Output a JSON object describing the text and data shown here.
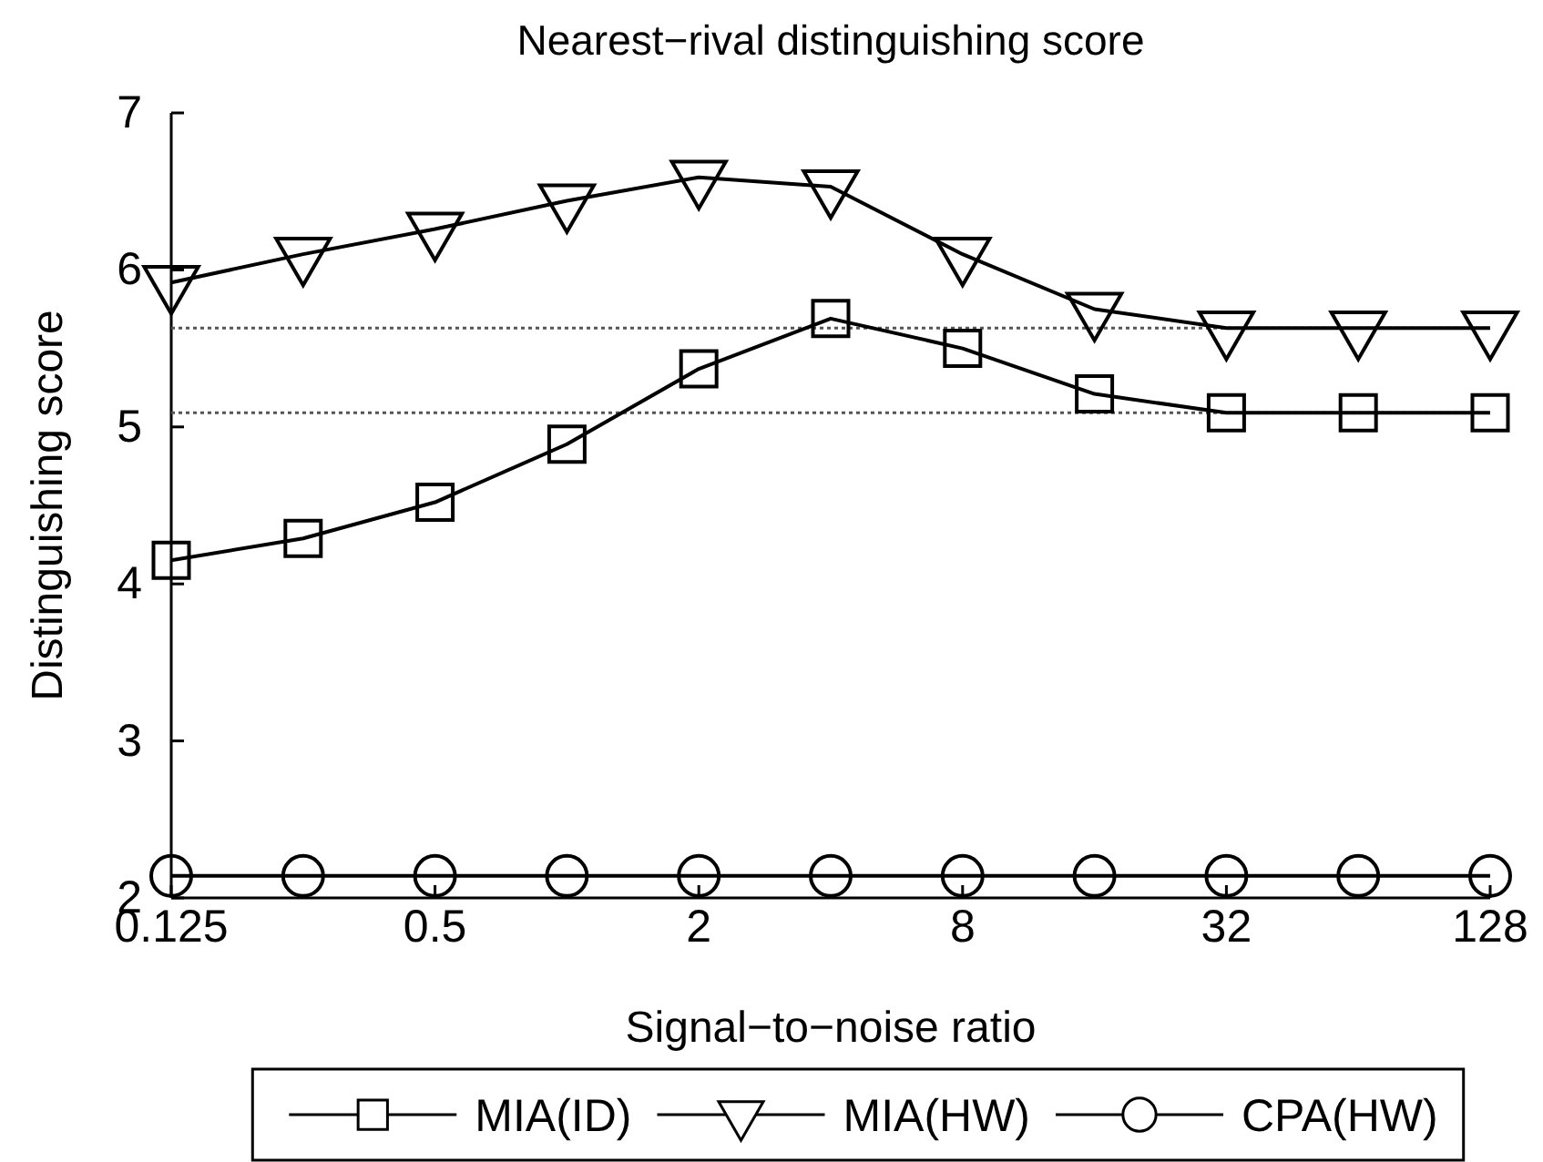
{
  "chart_data": {
    "type": "line",
    "title": "Nearest−rival distinguishing score",
    "xlabel": "Signal−to−noise ratio",
    "ylabel": "Distinguishing score",
    "x": [
      0.125,
      0.25,
      0.5,
      1,
      2,
      4,
      8,
      16,
      32,
      64,
      128
    ],
    "log": "x",
    "xlim": [
      0.125,
      128
    ],
    "xticks": [
      0.125,
      0.5,
      2,
      8,
      32,
      128
    ],
    "ylim": [
      2,
      7
    ],
    "yticks": [
      2,
      3,
      4,
      5,
      6,
      7
    ],
    "grid": false,
    "legend": "bottom",
    "line_style": "solid",
    "series": [
      {
        "name": "MIA(ID)",
        "color": "#000000",
        "marker": "square",
        "values": [
          4.15,
          4.29,
          4.52,
          4.89,
          5.37,
          5.69,
          5.5,
          5.21,
          5.09,
          5.09,
          5.09
        ]
      },
      {
        "name": "MIA(HW)",
        "color": "#000000",
        "marker": "triangle",
        "values": [
          5.92,
          6.1,
          6.26,
          6.44,
          6.59,
          6.53,
          6.1,
          5.75,
          5.63,
          5.63,
          5.63
        ]
      },
      {
        "name": "CPA(HW)",
        "color": "#000000",
        "marker": "circle",
        "values": [
          2.14,
          2.14,
          2.14,
          2.14,
          2.14,
          2.14,
          2.14,
          2.14,
          2.14,
          2.14,
          2.14
        ]
      }
    ],
    "ref_lines": [
      {
        "axis": "y",
        "value": 5.63,
        "line_style": "dotted",
        "color": "#555555"
      },
      {
        "axis": "y",
        "value": 5.09,
        "line_style": "dotted",
        "color": "#555555"
      }
    ]
  }
}
